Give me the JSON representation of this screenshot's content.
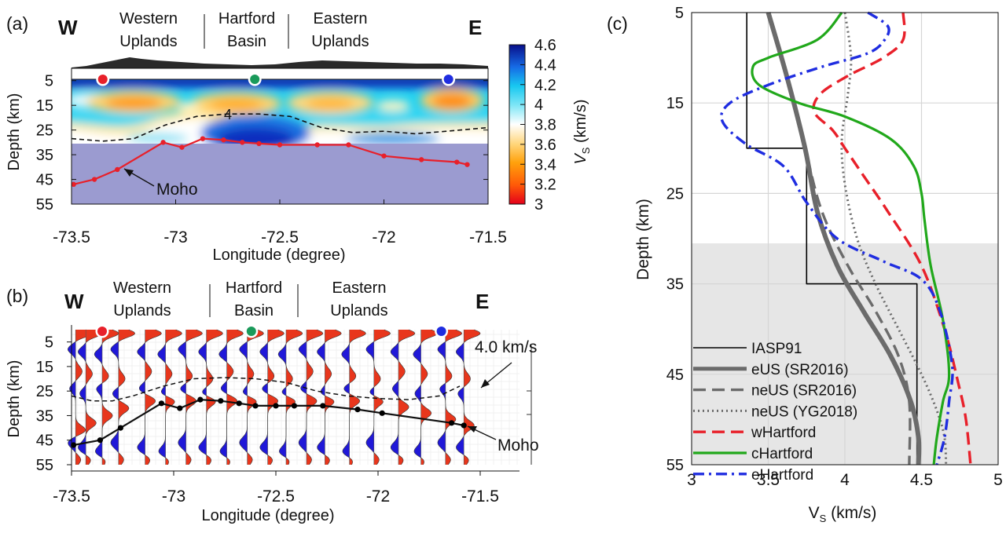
{
  "panel_a": {
    "label": "(a)",
    "west": "W",
    "east": "E",
    "regions": [
      [
        "Western",
        "Uplands"
      ],
      [
        "Hartford",
        "Basin"
      ],
      [
        "Eastern",
        "Uplands"
      ]
    ],
    "ylabel": "Depth (km)",
    "xlabel": "Longitude (degree)",
    "xticks": [
      "-73.5",
      "-73",
      "-72.5",
      "-72",
      "-71.5"
    ],
    "yticks": [
      "5",
      "15",
      "25",
      "35",
      "45",
      "55"
    ],
    "contour_label": "4",
    "moho_label": "Moho",
    "colorbar_ticks": [
      "4.6",
      "4.4",
      "4.2",
      "4",
      "3.8",
      "3.6",
      "3.4",
      "3.2",
      "3"
    ],
    "colorbar_label": "V",
    "colorbar_label_sub": "S",
    "colorbar_label_unit": " (km/s)"
  },
  "panel_b": {
    "label": "(b)",
    "west": "W",
    "east": "E",
    "regions": [
      [
        "Western",
        "Uplands"
      ],
      [
        "Hartford",
        "Basin"
      ],
      [
        "Eastern",
        "Uplands"
      ]
    ],
    "ylabel": "Depth (km)",
    "xlabel": "Longitude (degree)",
    "xticks": [
      "-73.5",
      "-73",
      "-72.5",
      "-72",
      "-71.5"
    ],
    "yticks": [
      "5",
      "15",
      "25",
      "35",
      "45",
      "55"
    ],
    "contour_label": "4.0 km/s",
    "moho_label": "Moho"
  },
  "panel_c": {
    "label": "(c)",
    "ylabel": "Depth (km)",
    "xlabel": "V",
    "xlabel_sub": "S",
    "xlabel_unit": " (km/s)",
    "xticks": [
      "3",
      "3.5",
      "4",
      "4.5",
      "5"
    ],
    "yticks": [
      "5",
      "15",
      "25",
      "35",
      "45",
      "55"
    ]
  },
  "colors": {
    "moho_a": "#e8202a",
    "moho_b": "#000000",
    "station_west": "#e8202a",
    "station_center": "#1a9a5a",
    "station_east": "#1f2de0",
    "wiggle_pos": "#e8361c",
    "wiggle_neg": "#2018d8",
    "mantle_shade": "#9b9bd0"
  },
  "chart_data": [
    {
      "type": "heatmap",
      "panel": "a",
      "x_range": [
        -73.5,
        -71.5
      ],
      "y_range": [
        0,
        55
      ],
      "colorbar_range": [
        3,
        4.6
      ],
      "moho": {
        "lon": [
          -73.49,
          -73.39,
          -73.28,
          -73.06,
          -72.97,
          -72.87,
          -72.77,
          -72.68,
          -72.6,
          -72.5,
          -72.32,
          -72.17,
          -72.0,
          -71.82,
          -71.65,
          -71.6
        ],
        "depth": [
          47,
          45,
          41,
          30,
          32,
          28.5,
          29,
          30,
          30.5,
          31,
          31,
          31,
          35.5,
          37,
          38,
          39
        ]
      },
      "vs4_contour": {
        "lon": [
          -73.5,
          -73.35,
          -73.2,
          -73.05,
          -72.9,
          -72.75,
          -72.6,
          -72.45,
          -72.3,
          -72.15,
          -72.0,
          -71.85,
          -71.7,
          -71.5
        ],
        "depth": [
          28.5,
          29.5,
          28.5,
          23,
          19.5,
          18.5,
          18.5,
          19.5,
          24,
          26,
          25.5,
          26.5,
          25.5,
          24
        ]
      },
      "stations_lon": [
        -73.35,
        -72.62,
        -71.69
      ]
    },
    {
      "type": "line",
      "panel": "b",
      "x_range": [
        -73.5,
        -71.3
      ],
      "y_range": [
        0,
        55
      ],
      "moho": {
        "lon": [
          -73.49,
          -73.36,
          -73.26,
          -73.06,
          -72.97,
          -72.87,
          -72.77,
          -72.68,
          -72.6,
          -72.5,
          -72.41,
          -72.27,
          -72.1,
          -71.98,
          -71.64,
          -71.58
        ],
        "depth": [
          47,
          45,
          40,
          30,
          32,
          28.5,
          29,
          30,
          31,
          31,
          31,
          31,
          32.5,
          34,
          38,
          39
        ]
      },
      "vs4_contour": {
        "lon": [
          -73.5,
          -73.4,
          -73.3,
          -73.2,
          -73.05,
          -72.9,
          -72.75,
          -72.6,
          -72.45,
          -72.3,
          -72.15,
          -72.0,
          -71.85,
          -71.7,
          -71.6
        ],
        "depth": [
          27,
          29,
          29,
          27,
          23,
          20,
          19.5,
          20,
          21.5,
          25,
          27,
          28,
          28.5,
          27,
          23
        ]
      },
      "stations_lon": [
        -73.35,
        -72.62,
        -71.69
      ],
      "receiver_function_lon": [
        -73.48,
        -73.43,
        -73.35,
        -73.27,
        -73.14,
        -73.04,
        -72.94,
        -72.84,
        -72.74,
        -72.64,
        -72.54,
        -72.45,
        -72.35,
        -72.26,
        -72.14,
        -72.02,
        -71.9,
        -71.79,
        -71.67,
        -71.58
      ]
    },
    {
      "type": "line",
      "panel": "c",
      "x_range": [
        3,
        5
      ],
      "y_range": [
        5,
        55
      ],
      "y_reversed": true,
      "grid": true,
      "legend_position": "bottom-left",
      "series": [
        {
          "name": "IASP91",
          "style": "solid-thin",
          "color": "#000000",
          "x": [
            3.36,
            3.36,
            3.75,
            3.75,
            4.47,
            4.47
          ],
          "y": [
            5,
            20,
            20,
            35,
            35,
            55
          ]
        },
        {
          "name": "eUS (SR2016)",
          "style": "solid-thick",
          "color": "#6b6b6b",
          "x": [
            3.5,
            3.62,
            3.74,
            3.82,
            3.95,
            4.12,
            4.3,
            4.43,
            4.48,
            4.48
          ],
          "y": [
            5,
            12,
            20,
            27,
            33,
            38,
            43,
            48,
            52,
            55
          ]
        },
        {
          "name": "neUS (SR2016)",
          "style": "dashed",
          "color": "#6b6b6b",
          "x": [
            3.5,
            3.62,
            3.74,
            3.85,
            4.02,
            4.2,
            4.35,
            4.42,
            4.42
          ],
          "y": [
            5,
            12,
            20,
            27,
            33,
            38,
            43,
            48,
            55
          ]
        },
        {
          "name": "neUS (YG2018)",
          "style": "dotted",
          "color": "#6b6b6b",
          "x": [
            4.0,
            4.04,
            4.02,
            3.98,
            4.0,
            4.08,
            4.2,
            4.35,
            4.5,
            4.6,
            4.65,
            4.66
          ],
          "y": [
            5,
            10,
            14,
            19,
            24,
            30,
            35,
            40,
            45,
            49,
            52,
            55
          ]
        },
        {
          "name": "wHartford",
          "style": "dashed",
          "color": "#e8202a",
          "x": [
            4.38,
            4.38,
            4.25,
            4.02,
            3.84,
            3.8,
            3.92,
            4.0,
            4.12,
            4.28,
            4.5,
            4.65,
            4.74,
            4.79,
            4.82
          ],
          "y": [
            5,
            8,
            10,
            12,
            14,
            16,
            18,
            20,
            23,
            27,
            33,
            40,
            46,
            50,
            55
          ]
        },
        {
          "name": "cHartford",
          "style": "solid",
          "color": "#21a81b",
          "x": [
            3.98,
            3.82,
            3.5,
            3.4,
            3.44,
            3.7,
            4.0,
            4.3,
            4.45,
            4.5,
            4.52,
            4.56,
            4.64,
            4.68,
            4.64,
            4.6,
            4.58
          ],
          "y": [
            5,
            8,
            10,
            11,
            13,
            15,
            16.5,
            19,
            22,
            25,
            28,
            33,
            39,
            45,
            48,
            52,
            55
          ]
        },
        {
          "name": "eHartford",
          "style": "dash-dot",
          "color": "#1f2de0",
          "x": [
            4.15,
            4.28,
            4.26,
            4.15,
            3.85,
            3.5,
            3.25,
            3.2,
            3.35,
            3.6,
            3.75,
            3.95,
            4.25,
            4.5,
            4.62,
            4.7,
            4.68,
            4.65,
            4.6
          ],
          "y": [
            5,
            6.5,
            8,
            9.5,
            11,
            13,
            15,
            17,
            19.5,
            22,
            26,
            30,
            32.5,
            34.5,
            38,
            44,
            48,
            52,
            55
          ]
        }
      ]
    }
  ]
}
